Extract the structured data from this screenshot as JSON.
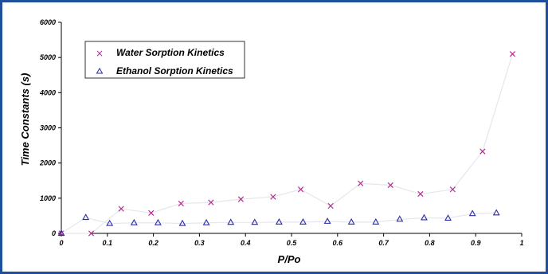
{
  "chart_data": {
    "type": "scatter",
    "title": "",
    "xlabel": "P/Po",
    "ylabel": "Time Constants (s)",
    "xlim": [
      0,
      1
    ],
    "ylim": [
      0,
      6000
    ],
    "x_ticks": [
      0,
      0.1,
      0.2,
      0.3,
      0.4,
      0.5,
      0.6,
      0.7,
      0.8,
      0.9,
      1
    ],
    "y_ticks": [
      0,
      1000,
      2000,
      3000,
      4000,
      5000,
      6000
    ],
    "grid": false,
    "legend_position": "top-left",
    "series": [
      {
        "name": "Water Sorption Kinetics",
        "marker": "x",
        "color": "#b0308f",
        "line_color": "#e6e6ee",
        "x": [
          0.0,
          0.065,
          0.13,
          0.195,
          0.26,
          0.325,
          0.39,
          0.46,
          0.52,
          0.585,
          0.65,
          0.715,
          0.78,
          0.85,
          0.915,
          0.98
        ],
        "y": [
          0,
          0,
          700,
          580,
          850,
          880,
          970,
          1040,
          1250,
          780,
          1420,
          1370,
          1120,
          1250,
          2330,
          5100
        ]
      },
      {
        "name": "Ethanol Sorption Kinetics",
        "marker": "triangle",
        "color": "#2a2aa8",
        "line_color": "#e6e6ee",
        "x": [
          0.0,
          0.053,
          0.105,
          0.158,
          0.21,
          0.263,
          0.315,
          0.368,
          0.42,
          0.473,
          0.525,
          0.578,
          0.63,
          0.683,
          0.735,
          0.788,
          0.84,
          0.893,
          0.945
        ],
        "y": [
          0,
          450,
          280,
          300,
          300,
          280,
          300,
          310,
          310,
          320,
          320,
          340,
          320,
          320,
          400,
          440,
          430,
          560,
          580
        ]
      }
    ]
  }
}
